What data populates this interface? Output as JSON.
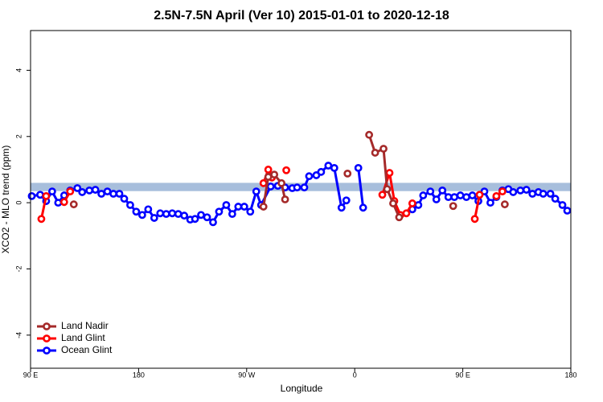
{
  "chart_data": {
    "type": "line",
    "title": "2.5N-7.5N April (Ver 10)   2015-01-01 to 2020-12-18",
    "x_label": "Longitude",
    "y_label": "XCO2 - MLO trend (ppm)",
    "xlim": [
      90,
      540
    ],
    "xticks": [
      {
        "value": 90,
        "label": "90 E"
      },
      {
        "value": 180,
        "label": "180"
      },
      {
        "value": 270,
        "label": "90 W"
      },
      {
        "value": 360,
        "label": "0"
      },
      {
        "value": 450,
        "label": "90 E"
      },
      {
        "value": 540,
        "label": "180"
      }
    ],
    "ylim": [
      -5,
      5.2
    ],
    "yticks": [
      -4,
      -2,
      0,
      2,
      4
    ],
    "band": [
      0.35,
      0.6
    ],
    "band_color": "#a7bedc",
    "legend": "bottomleft",
    "series": [
      {
        "name": "Land Nadir",
        "color": "#a52a2a",
        "x": [
          126,
          null,
          284,
          288,
          293,
          299,
          302,
          null,
          354,
          null,
          372,
          377,
          384,
          387,
          392,
          397,
          null,
          442,
          null,
          485
        ],
        "values": [
          -0.05,
          null,
          -0.12,
          0.78,
          0.85,
          0.59,
          0.1,
          null,
          0.88,
          null,
          2.05,
          1.51,
          1.63,
          0.41,
          -0.02,
          -0.44,
          null,
          -0.1,
          null,
          -0.05
        ]
      },
      {
        "name": "Land Glint",
        "color": "#ff0000",
        "x": [
          99,
          103,
          null,
          118,
          123,
          null,
          284,
          288,
          291,
          null,
          303,
          null,
          383,
          389,
          393,
          398,
          403,
          408,
          null,
          460,
          464,
          null,
          478,
          483
        ],
        "values": [
          -0.49,
          0.2,
          null,
          0.02,
          0.34,
          null,
          0.59,
          1.0,
          0.76,
          null,
          0.98,
          null,
          0.24,
          0.9,
          0.05,
          -0.37,
          -0.32,
          -0.02,
          null,
          -0.49,
          0.24,
          null,
          0.2,
          0.34
        ]
      },
      {
        "name": "Ocean Glint",
        "color": "#0000ff",
        "x": [
          91,
          98,
          103,
          108,
          113,
          118,
          123,
          129,
          133,
          139,
          144,
          149,
          154,
          159,
          164,
          168,
          173,
          178,
          183,
          188,
          193,
          198,
          203,
          208,
          213,
          218,
          223,
          227,
          232,
          237,
          242,
          247,
          253,
          258,
          263,
          268,
          273,
          278,
          282,
          290,
          296,
          302,
          308,
          312,
          318,
          322,
          328,
          332,
          338,
          343,
          349,
          353,
          null,
          363,
          367,
          null,
          408,
          413,
          417,
          423,
          428,
          433,
          438,
          443,
          448,
          453,
          458,
          463,
          468,
          473,
          478,
          483,
          488,
          492,
          498,
          503,
          508,
          513,
          517,
          523,
          527,
          533,
          537
        ],
        "values": [
          0.2,
          0.24,
          0.05,
          0.34,
          0.0,
          0.22,
          0.37,
          0.44,
          0.32,
          0.37,
          0.39,
          0.27,
          0.34,
          0.27,
          0.27,
          0.12,
          -0.07,
          -0.27,
          -0.37,
          -0.2,
          -0.46,
          -0.32,
          -0.34,
          -0.32,
          -0.34,
          -0.39,
          -0.51,
          -0.49,
          -0.37,
          -0.44,
          -0.59,
          -0.27,
          -0.07,
          -0.34,
          -0.12,
          -0.12,
          -0.27,
          0.34,
          -0.07,
          0.49,
          0.51,
          0.46,
          0.44,
          0.46,
          0.46,
          0.8,
          0.83,
          0.93,
          1.12,
          1.05,
          -0.15,
          0.07,
          null,
          1.05,
          -0.15,
          null,
          -0.2,
          -0.07,
          0.22,
          0.34,
          0.1,
          0.37,
          0.17,
          0.17,
          0.22,
          0.17,
          0.22,
          0.05,
          0.34,
          0.0,
          0.17,
          0.37,
          0.41,
          0.32,
          0.37,
          0.39,
          0.27,
          0.32,
          0.27,
          0.27,
          0.12,
          -0.07,
          -0.24
        ]
      }
    ]
  }
}
